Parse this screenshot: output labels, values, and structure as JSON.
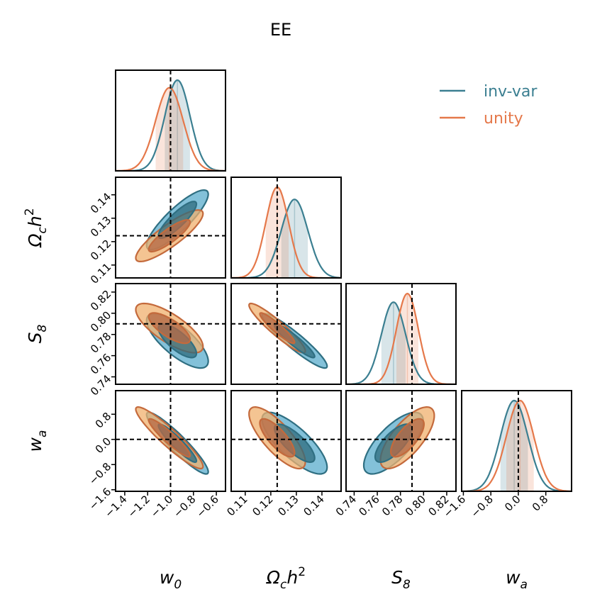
{
  "chart_data": {
    "type": "corner",
    "title": "EE",
    "colors": {
      "inv_var": "#3b7f91",
      "unity": "#e5784a"
    },
    "legend": {
      "placement": "top-right",
      "entries": [
        {
          "key": "inv_var",
          "label": "inv-var"
        },
        {
          "key": "unity",
          "label": "unity"
        }
      ]
    },
    "parameters": [
      {
        "key": "w0",
        "symbol": "w",
        "sub": "0",
        "sup": "",
        "range": [
          -1.48,
          -0.52
        ],
        "fiducial": -1.0,
        "ticks": [
          -1.4,
          -1.2,
          -1.0,
          -0.8,
          -0.6
        ],
        "tick_labels": [
          "−1.4",
          "−1.2",
          "−1.0",
          "−0.8",
          "−0.6"
        ]
      },
      {
        "key": "omch2",
        "symbol": "Ω",
        "sub": "c",
        "sup": "2",
        "range": [
          0.1045,
          0.1475
        ],
        "fiducial": 0.1225,
        "ticks": [
          0.11,
          0.12,
          0.13,
          0.14
        ],
        "tick_labels": [
          "0.11",
          "0.12",
          "0.13",
          "0.14"
        ]
      },
      {
        "key": "S8",
        "symbol": "S",
        "sub": "8",
        "sup": "",
        "range": [
          0.733,
          0.828
        ],
        "fiducial": 0.79,
        "ticks": [
          0.74,
          0.76,
          0.78,
          0.8,
          0.82
        ],
        "tick_labels": [
          "0.74",
          "0.76",
          "0.78",
          "0.80",
          "0.82"
        ]
      },
      {
        "key": "wa",
        "symbol": "w",
        "sub": "a",
        "sup": "",
        "range": [
          -1.65,
          1.55
        ],
        "fiducial": 0.0,
        "ticks": [
          -1.6,
          -0.8,
          0.0,
          0.8
        ],
        "tick_labels": [
          "−1.6",
          "−0.8",
          "0.0",
          "0.8"
        ]
      }
    ],
    "series": [
      {
        "key": "inv_var",
        "name": "inv-var",
        "means": [
          -0.94,
          0.1293,
          0.774,
          -0.12
        ],
        "sigmas": [
          0.11,
          0.0052,
          0.0105,
          0.4
        ],
        "correlations": {
          "1,0": 0.86,
          "2,0": -0.75,
          "2,1": -0.93,
          "3,0": -0.93,
          "3,1": -0.78,
          "3,2": 0.72
        }
      },
      {
        "key": "unity",
        "name": "unity",
        "means": [
          -1.01,
          0.1225,
          0.786,
          0.05
        ],
        "sigmas": [
          0.12,
          0.0045,
          0.0095,
          0.4
        ],
        "correlations": {
          "1,0": 0.86,
          "2,0": -0.75,
          "2,1": -0.93,
          "3,0": -0.93,
          "3,1": -0.78,
          "3,2": 0.72
        }
      }
    ],
    "contour_levels": [
      "68%",
      "95%"
    ]
  }
}
